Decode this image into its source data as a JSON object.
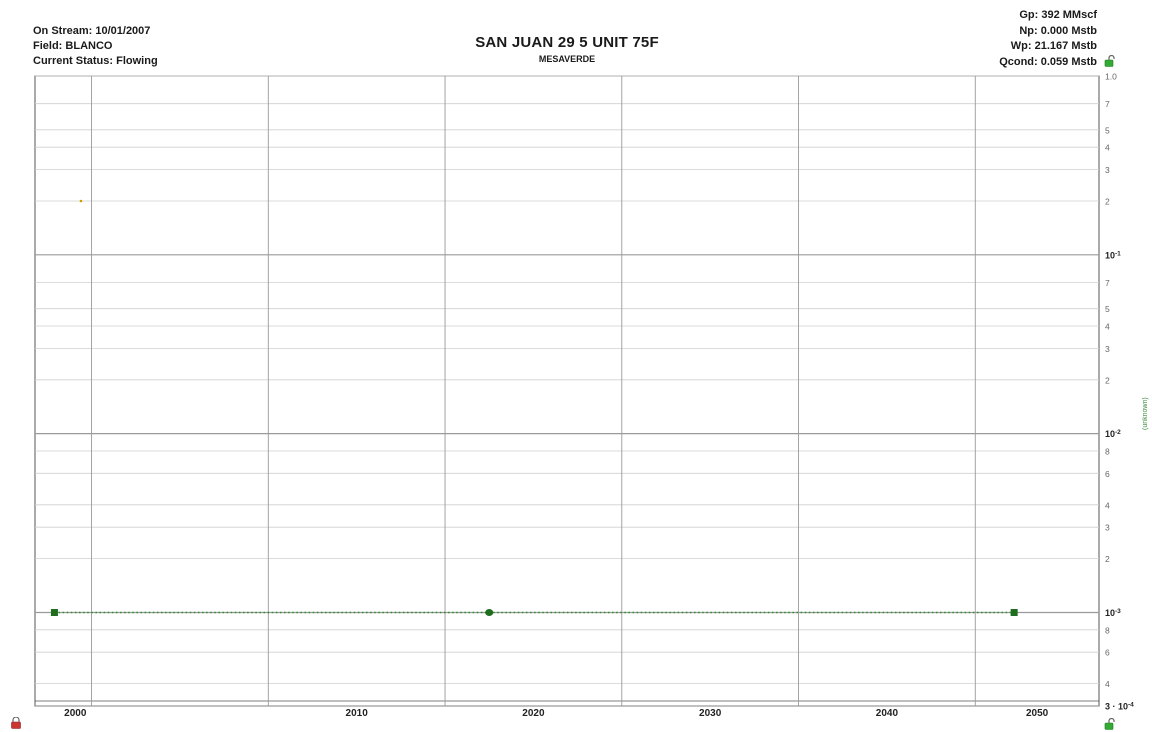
{
  "header": {
    "left": [
      {
        "label": "On Stream:",
        "value": "10/01/2007"
      },
      {
        "label": "Field:",
        "value": "BLANCO"
      },
      {
        "label": "Current Status:",
        "value": "Flowing"
      }
    ],
    "title": "SAN JUAN 29 5 UNIT 75F",
    "subtitle": "MESAVERDE",
    "right": [
      {
        "label": "Gp:",
        "value": "392 MMscf"
      },
      {
        "label": "Np:",
        "value": "0.000 Mstb"
      },
      {
        "label": "Wp:",
        "value": "21.167 Mstb"
      },
      {
        "label": "Qcond:",
        "value": "0.059 Mstb"
      }
    ]
  },
  "side_label": "(unknown)",
  "colors": {
    "forecast": "#2d8a2d",
    "forecast_marker": "#1f6e1f",
    "point": "#c9a000",
    "grid_major": "#9a9a9a",
    "grid_minor": "#cfcfcf",
    "lock_red": "#cc3333",
    "lock_green": "#33aa33"
  },
  "icons": {
    "top_right": "unlock-icon",
    "bottom_left": "lock-icon",
    "bottom_right": "unlock-icon"
  },
  "chart_data": {
    "type": "line",
    "title": "SAN JUAN 29 5 UNIT 75F",
    "subtitle": "MESAVERDE",
    "xlim": [
      1996.8,
      2057.0
    ],
    "x_ticks": [
      2000,
      2010,
      2020,
      2030,
      2040,
      2050
    ],
    "y_scale": "log",
    "ylim": [
      0.0003,
      1.0
    ],
    "y_ticks": [
      {
        "value": 1.0,
        "label": "1.0",
        "sup": ""
      },
      {
        "value": 0.7,
        "label": "7",
        "sup": ""
      },
      {
        "value": 0.5,
        "label": "5",
        "sup": ""
      },
      {
        "value": 0.4,
        "label": "4",
        "sup": ""
      },
      {
        "value": 0.3,
        "label": "3",
        "sup": ""
      },
      {
        "value": 0.2,
        "label": "2",
        "sup": ""
      },
      {
        "value": 0.1,
        "label": "10",
        "sup": "-1"
      },
      {
        "value": 0.07,
        "label": "7",
        "sup": ""
      },
      {
        "value": 0.05,
        "label": "5",
        "sup": ""
      },
      {
        "value": 0.04,
        "label": "4",
        "sup": ""
      },
      {
        "value": 0.03,
        "label": "3",
        "sup": ""
      },
      {
        "value": 0.02,
        "label": "2",
        "sup": ""
      },
      {
        "value": 0.01,
        "label": "10",
        "sup": "-2"
      },
      {
        "value": 0.008,
        "label": "8",
        "sup": ""
      },
      {
        "value": 0.006,
        "label": "6",
        "sup": ""
      },
      {
        "value": 0.004,
        "label": "4",
        "sup": ""
      },
      {
        "value": 0.003,
        "label": "3",
        "sup": ""
      },
      {
        "value": 0.002,
        "label": "2",
        "sup": ""
      },
      {
        "value": 0.001,
        "label": "10",
        "sup": "-3"
      },
      {
        "value": 0.0008,
        "label": "8",
        "sup": ""
      },
      {
        "value": 0.0006,
        "label": "6",
        "sup": ""
      },
      {
        "value": 0.0004,
        "label": "4",
        "sup": ""
      },
      {
        "value": 0.0003,
        "label": "3 · 10",
        "sup": "-4"
      }
    ],
    "grid": true,
    "series": [
      {
        "style": "dotted-line",
        "x": [
          1997.9,
          2022.5,
          2052.2
        ],
        "y": [
          0.001,
          0.001,
          0.001
        ],
        "markers": [
          "square",
          "circle",
          "square"
        ]
      },
      {
        "style": "point",
        "x": [
          1999.4
        ],
        "y": [
          0.2
        ]
      }
    ]
  }
}
